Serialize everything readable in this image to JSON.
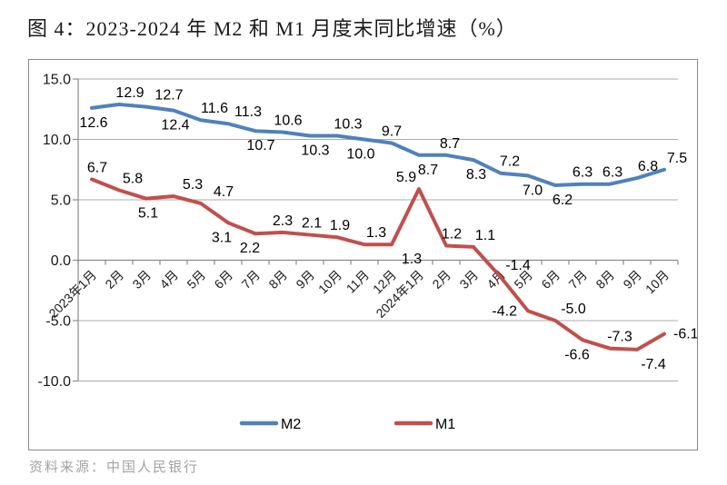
{
  "page": {
    "title": "图 4：2023-2024 年 M2 和 M1 月度末同比增速（%）",
    "source": "资料来源：中国人民银行"
  },
  "chart_data": {
    "type": "line",
    "title": "图 4：2023-2024 年 M2 和 M1 月度末同比增速（%）",
    "categories": [
      "2023年1月",
      "2月",
      "3月",
      "4月",
      "5月",
      "6月",
      "7月",
      "8月",
      "9月",
      "10月",
      "11月",
      "12月",
      "2024年1月",
      "2月",
      "3月",
      "4月",
      "5月",
      "6月",
      "7月",
      "8月",
      "9月",
      "10月"
    ],
    "series": [
      {
        "name": "M2",
        "color": "#4F81BD",
        "values": [
          12.6,
          12.9,
          12.7,
          12.4,
          11.6,
          11.3,
          10.7,
          10.6,
          10.3,
          10.3,
          10.0,
          9.7,
          8.7,
          8.7,
          8.3,
          7.2,
          7.0,
          6.2,
          6.3,
          6.3,
          6.8,
          7.5
        ],
        "label_pos": [
          "below",
          "above",
          "above",
          "below",
          "above",
          "above",
          "below",
          "above",
          "below",
          "above",
          "below",
          "above",
          "below",
          "above",
          "below",
          "above",
          "below",
          "below",
          "above",
          "above",
          "above",
          "above"
        ],
        "label_dx": [
          2,
          12,
          25,
          2,
          15,
          22,
          6,
          6,
          6,
          12,
          -4,
          0,
          10,
          4,
          3,
          10,
          5,
          8,
          0,
          3,
          12,
          14
        ]
      },
      {
        "name": "M1",
        "color": "#C0504D",
        "values": [
          6.7,
          5.8,
          5.1,
          5.3,
          4.7,
          3.1,
          2.2,
          2.3,
          2.1,
          1.9,
          1.3,
          1.3,
          5.9,
          1.2,
          1.1,
          -1.4,
          -4.2,
          -5.0,
          -6.6,
          -7.3,
          -7.4,
          -6.1
        ],
        "label_pos": [
          "above",
          "above",
          "below",
          "above",
          "above",
          "below",
          "below",
          "above",
          "above",
          "above",
          "above",
          "below",
          "above",
          "above",
          "above",
          "above",
          "left",
          "above",
          "below",
          "above",
          "below",
          "right"
        ],
        "label_dx": [
          6,
          15,
          2,
          21,
          25,
          -7,
          -6,
          0,
          2,
          3,
          13,
          22,
          -14,
          6,
          13,
          19,
          -4,
          20,
          -6,
          11,
          18,
          0
        ]
      }
    ],
    "ylim": [
      -10,
      15
    ],
    "yticks": [
      15.0,
      10.0,
      5.0,
      0.0,
      -5.0,
      -10.0
    ],
    "ytick_labels": [
      "15.0",
      "10.0",
      "5.0",
      "0.0",
      "-5.0",
      "-10.0"
    ],
    "grid": true,
    "legend_position": "bottom",
    "colors": {
      "gridline": "#ababab",
      "axis": "#8c8c8c",
      "label_text": "#000000",
      "tick_text": "#1a1a1a"
    }
  }
}
